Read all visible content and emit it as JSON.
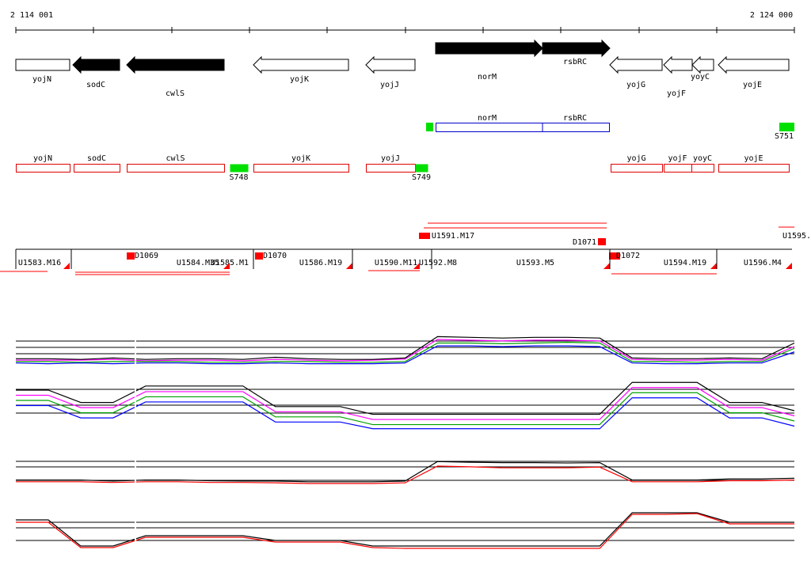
{
  "ruler": {
    "start": "2 114 001",
    "end": "2 124 000"
  },
  "genes": [
    "yojN",
    "sodC",
    "cwlS",
    "yojK",
    "yojJ",
    "norM",
    "rsbRC",
    "yojG",
    "yojF",
    "yoyC",
    "yojE"
  ],
  "operon": {
    "labels": [
      "norM",
      "rsbRC"
    ],
    "site": "S751"
  },
  "annotations": [
    "yojN",
    "sodC",
    "cwlS",
    "S748",
    "yojK",
    "yojJ",
    "S749",
    "yojG",
    "yojF",
    "yoyC",
    "yojE"
  ],
  "segments": [
    "U1583.M16",
    "D1069",
    "U1584.M35",
    "U1585.M1",
    "D1070",
    "U1586.M19",
    "U1590.M11",
    "U1592.M8",
    "U1591.M17",
    "U1593.M5",
    "D1071",
    "D1072",
    "U1594.M19",
    "U1596.M4",
    "U1595."
  ],
  "profile_panels": [
    {
      "series": [
        {
          "color": "#ff00ff",
          "values": [
            22,
            22,
            22,
            24,
            20,
            22,
            22,
            20,
            24,
            22,
            20,
            22,
            25,
            80,
            78,
            76,
            78,
            78,
            76,
            24,
            22,
            22,
            24,
            22,
            60
          ]
        },
        {
          "color": "#00a000",
          "values": [
            18,
            18,
            16,
            18,
            18,
            18,
            16,
            16,
            18,
            18,
            16,
            16,
            18,
            70,
            70,
            68,
            70,
            72,
            70,
            18,
            18,
            16,
            18,
            18,
            55
          ]
        },
        {
          "color": "#0000ff",
          "values": [
            14,
            12,
            14,
            12,
            14,
            14,
            12,
            12,
            14,
            12,
            12,
            12,
            14,
            62,
            62,
            60,
            62,
            62,
            60,
            14,
            12,
            12,
            14,
            14,
            45
          ]
        },
        {
          "color": "#000000",
          "values": [
            26,
            26,
            24,
            28,
            24,
            26,
            26,
            24,
            30,
            26,
            24,
            24,
            28,
            88,
            86,
            84,
            86,
            86,
            84,
            28,
            26,
            26,
            28,
            26,
            70
          ]
        }
      ]
    },
    {
      "series": [
        {
          "color": "#000000",
          "values": [
            80,
            80,
            56,
            56,
            88,
            88,
            88,
            88,
            48,
            48,
            48,
            33,
            33,
            33,
            33,
            33,
            33,
            33,
            33,
            95,
            95,
            95,
            56,
            56,
            40
          ]
        },
        {
          "color": "#ff00ff",
          "values": [
            70,
            70,
            46,
            46,
            77,
            77,
            77,
            77,
            38,
            38,
            38,
            23,
            23,
            23,
            23,
            23,
            23,
            23,
            23,
            85,
            85,
            85,
            46,
            46,
            30
          ]
        },
        {
          "color": "#00a000",
          "values": [
            60,
            60,
            36,
            36,
            67,
            67,
            67,
            67,
            28,
            28,
            28,
            13,
            13,
            13,
            13,
            13,
            13,
            13,
            13,
            75,
            75,
            75,
            36,
            36,
            20
          ]
        },
        {
          "color": "#0000ff",
          "values": [
            50,
            50,
            26,
            26,
            57,
            57,
            57,
            57,
            18,
            18,
            18,
            5,
            5,
            5,
            5,
            5,
            5,
            5,
            5,
            65,
            65,
            65,
            26,
            26,
            10
          ]
        }
      ]
    },
    {
      "series": [
        {
          "color": "#000000",
          "values": [
            35,
            35,
            35,
            32,
            35,
            35,
            33,
            32,
            32,
            30,
            30,
            30,
            32,
            88,
            86,
            85,
            85,
            84,
            85,
            35,
            35,
            35,
            38,
            38,
            40
          ]
        },
        {
          "color": "#ff0000",
          "values": [
            30,
            30,
            30,
            28,
            30,
            30,
            28,
            28,
            27,
            25,
            25,
            25,
            27,
            75,
            73,
            70,
            70,
            70,
            72,
            30,
            30,
            30,
            33,
            33,
            35
          ]
        }
      ]
    },
    {
      "series": [
        {
          "color": "#000000",
          "values": [
            76,
            76,
            10,
            10,
            36,
            36,
            36,
            36,
            24,
            24,
            24,
            10,
            10,
            10,
            10,
            10,
            10,
            10,
            10,
            94,
            94,
            94,
            70,
            70,
            70
          ]
        },
        {
          "color": "#ff0000",
          "values": [
            70,
            70,
            6,
            6,
            32,
            32,
            32,
            32,
            20,
            20,
            20,
            6,
            4,
            4,
            4,
            4,
            4,
            4,
            4,
            90,
            90,
            92,
            66,
            66,
            66
          ]
        }
      ]
    }
  ]
}
